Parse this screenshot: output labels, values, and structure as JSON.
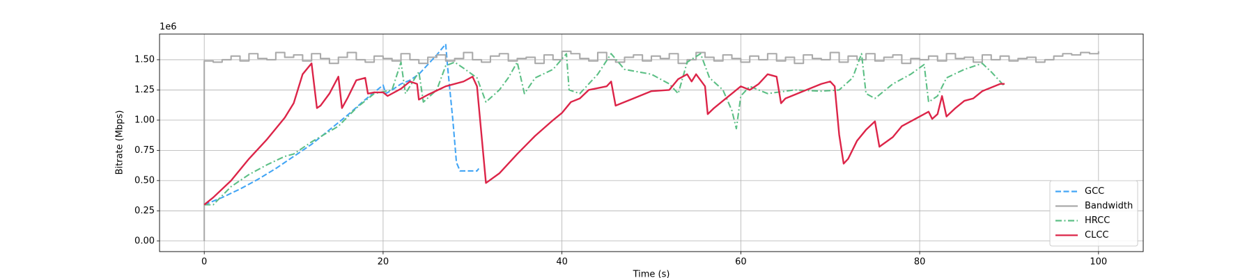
{
  "chart_data": {
    "type": "line",
    "x_label": "Time (s)",
    "y_label": "Bitrate (Mbps)",
    "y_offset_label": "1e6",
    "xlim": [
      -5,
      105
    ],
    "ylim": [
      -0.0875,
      1.7125
    ],
    "xticks": [
      0,
      20,
      40,
      60,
      80,
      100
    ],
    "yticks": [
      {
        "value": 0,
        "label": "0.00"
      },
      0.25,
      {
        "value": 0.5,
        "label": "0.50"
      },
      0.75,
      {
        "value": 1,
        "label": "1.00"
      },
      1.25,
      {
        "value": 1.5,
        "label": "1.50"
      }
    ],
    "grid": true,
    "legend": "lower right",
    "series": [
      {
        "name": "GCC",
        "color": "#42a5f5",
        "style": "dashed",
        "x": [
          0,
          2,
          4,
          6,
          8,
          10,
          12,
          14,
          16,
          18,
          20,
          20.3,
          21,
          22,
          23,
          24,
          25,
          26,
          27,
          27.2,
          27.8,
          28.2,
          28.6,
          30.5,
          30.7
        ],
        "values": [
          0.3,
          0.36,
          0.43,
          0.51,
          0.6,
          0.7,
          0.8,
          0.92,
          1.04,
          1.17,
          1.29,
          1.22,
          1.25,
          1.3,
          1.33,
          1.38,
          1.46,
          1.54,
          1.63,
          1.45,
          1.0,
          0.65,
          0.58,
          0.58,
          0.6
        ]
      },
      {
        "name": "Bandwidth",
        "color": "#aaaaaa",
        "style": "steps",
        "x": [
          0,
          0,
          1,
          2,
          3,
          4,
          5,
          6,
          7,
          8,
          9,
          10,
          11,
          12,
          13,
          14,
          15,
          16,
          17,
          18,
          19,
          20,
          21,
          22,
          23,
          24,
          25,
          26,
          27,
          28,
          29,
          30,
          31,
          32,
          33,
          34,
          35,
          36,
          37,
          38,
          39,
          40,
          41,
          42,
          43,
          44,
          45,
          46,
          47,
          48,
          49,
          50,
          51,
          52,
          53,
          54,
          55,
          56,
          57,
          58,
          59,
          60,
          61,
          62,
          63,
          64,
          65,
          66,
          67,
          68,
          69,
          70,
          71,
          72,
          73,
          74,
          75,
          76,
          77,
          78,
          79,
          80,
          81,
          82,
          83,
          84,
          85,
          86,
          87,
          88,
          89,
          90,
          91,
          92,
          93,
          94,
          95,
          96,
          97,
          98,
          99,
          100
        ],
        "values": [
          0,
          1.49,
          1.48,
          1.5,
          1.53,
          1.49,
          1.55,
          1.51,
          1.5,
          1.56,
          1.52,
          1.54,
          1.49,
          1.55,
          1.51,
          1.47,
          1.52,
          1.56,
          1.5,
          1.48,
          1.53,
          1.51,
          1.49,
          1.55,
          1.5,
          1.47,
          1.52,
          1.54,
          1.49,
          1.51,
          1.56,
          1.5,
          1.48,
          1.53,
          1.55,
          1.49,
          1.51,
          1.52,
          1.47,
          1.54,
          1.5,
          1.57,
          1.55,
          1.51,
          1.49,
          1.56,
          1.5,
          1.48,
          1.52,
          1.54,
          1.49,
          1.53,
          1.51,
          1.55,
          1.47,
          1.5,
          1.56,
          1.52,
          1.49,
          1.54,
          1.51,
          1.48,
          1.53,
          1.5,
          1.55,
          1.49,
          1.52,
          1.47,
          1.54,
          1.51,
          1.5,
          1.56,
          1.48,
          1.53,
          1.5,
          1.55,
          1.49,
          1.52,
          1.54,
          1.47,
          1.51,
          1.5,
          1.53,
          1.49,
          1.55,
          1.51,
          1.52,
          1.48,
          1.54,
          1.5,
          1.53,
          1.49,
          1.51,
          1.52,
          1.48,
          1.5,
          1.53,
          1.55,
          1.54,
          1.56,
          1.55,
          1.57
        ]
      },
      {
        "name": "HRCC",
        "color": "#5cbf85",
        "style": "dashdot",
        "x": [
          0,
          1,
          3,
          5,
          7,
          9,
          10,
          12,
          15,
          17,
          19,
          21,
          22,
          22.5,
          24,
          24.5,
          26,
          27,
          28,
          29,
          30.5,
          31.5,
          33,
          34,
          35,
          35.8,
          37,
          39,
          40.5,
          40.8,
          42,
          44,
          45.5,
          47,
          50,
          52,
          53,
          54,
          55.5,
          56.5,
          58,
          59,
          59.5,
          60,
          61,
          63,
          66,
          69,
          71,
          72.5,
          73.5,
          74,
          75,
          77,
          79,
          80.5,
          81,
          82,
          83,
          85,
          87,
          88,
          89.5
        ],
        "values": [
          0.3,
          0.3,
          0.45,
          0.55,
          0.63,
          0.7,
          0.72,
          0.82,
          0.95,
          1.1,
          1.22,
          1.25,
          1.48,
          1.22,
          1.4,
          1.15,
          1.25,
          1.45,
          1.48,
          1.43,
          1.35,
          1.15,
          1.25,
          1.35,
          1.48,
          1.22,
          1.35,
          1.42,
          1.55,
          1.25,
          1.22,
          1.38,
          1.55,
          1.42,
          1.38,
          1.3,
          1.22,
          1.48,
          1.55,
          1.35,
          1.25,
          1.08,
          0.93,
          1.2,
          1.28,
          1.22,
          1.25,
          1.24,
          1.25,
          1.35,
          1.55,
          1.22,
          1.18,
          1.3,
          1.38,
          1.46,
          1.15,
          1.2,
          1.35,
          1.42,
          1.47,
          1.4,
          1.28
        ]
      },
      {
        "name": "CLCC",
        "color": "#dc2448",
        "style": "solid",
        "x": [
          0,
          1,
          3,
          5,
          7,
          9,
          10,
          11,
          12,
          12.6,
          13,
          14,
          15,
          15.4,
          16,
          17,
          18,
          18.3,
          19,
          20,
          20.5,
          22,
          23,
          23.8,
          24,
          25,
          27,
          29,
          30,
          30.5,
          31.5,
          33,
          35,
          37,
          39,
          40,
          41,
          42,
          43,
          45,
          45.5,
          46,
          48,
          50,
          52,
          53,
          54,
          54.5,
          55,
          56,
          56.3,
          57,
          58,
          59,
          60,
          61,
          62,
          63,
          64,
          64.5,
          65,
          67,
          69,
          70,
          70.5,
          71,
          71.5,
          72,
          73,
          74,
          75,
          75.5,
          77,
          78,
          80,
          81,
          81.4,
          82,
          82.5,
          83,
          84,
          85,
          86,
          87,
          89,
          89.5
        ],
        "values": [
          0.3,
          0.36,
          0.5,
          0.68,
          0.84,
          1.02,
          1.14,
          1.38,
          1.47,
          1.1,
          1.12,
          1.22,
          1.36,
          1.1,
          1.18,
          1.33,
          1.35,
          1.22,
          1.23,
          1.23,
          1.2,
          1.26,
          1.32,
          1.3,
          1.17,
          1.21,
          1.28,
          1.32,
          1.36,
          1.28,
          0.48,
          0.56,
          0.72,
          0.87,
          1.0,
          1.06,
          1.15,
          1.18,
          1.25,
          1.28,
          1.32,
          1.12,
          1.18,
          1.24,
          1.25,
          1.34,
          1.38,
          1.32,
          1.38,
          1.28,
          1.05,
          1.1,
          1.16,
          1.22,
          1.28,
          1.25,
          1.3,
          1.38,
          1.36,
          1.14,
          1.18,
          1.24,
          1.3,
          1.32,
          1.28,
          0.88,
          0.64,
          0.68,
          0.83,
          0.92,
          0.99,
          0.78,
          0.86,
          0.95,
          1.03,
          1.07,
          1.01,
          1.05,
          1.2,
          1.03,
          1.1,
          1.16,
          1.18,
          1.24,
          1.3,
          1.3
        ]
      }
    ]
  }
}
